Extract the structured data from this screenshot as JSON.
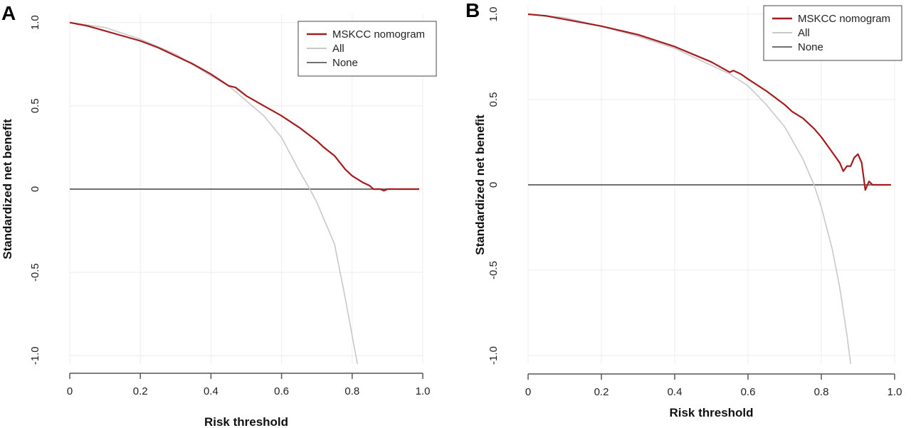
{
  "chart_data": [
    {
      "panel_label": "A",
      "type": "line",
      "xlabel": "Risk threshold",
      "ylabel": "Standardized net benefit",
      "xlim": [
        0,
        1.0
      ],
      "ylim": [
        -1.05,
        1.05
      ],
      "x_ticks": [
        0,
        0.2,
        0.4,
        0.6,
        0.8,
        1.0
      ],
      "x_tick_labels": [
        "0",
        "0.2",
        "0.4",
        "0.6",
        "0.8",
        "1.0"
      ],
      "y_ticks": [
        -1.0,
        -0.5,
        0,
        0.5,
        1.0
      ],
      "y_tick_labels": [
        "-1.0",
        "-0.5",
        "0",
        "0.5",
        "1.0"
      ],
      "grid": true,
      "legend_position": "top-right",
      "legend": [
        "MSKCC nomogram",
        "All",
        "None"
      ],
      "series": [
        {
          "name": "MSKCC nomogram",
          "color": "#a51c1c",
          "x": [
            0,
            0.05,
            0.1,
            0.15,
            0.2,
            0.25,
            0.3,
            0.35,
            0.4,
            0.45,
            0.47,
            0.5,
            0.55,
            0.6,
            0.65,
            0.7,
            0.72,
            0.75,
            0.78,
            0.8,
            0.83,
            0.85,
            0.86,
            0.88,
            0.89,
            0.9,
            0.95,
            0.99
          ],
          "y": [
            1.0,
            0.98,
            0.95,
            0.92,
            0.89,
            0.85,
            0.8,
            0.75,
            0.69,
            0.62,
            0.61,
            0.56,
            0.5,
            0.44,
            0.37,
            0.29,
            0.25,
            0.2,
            0.12,
            0.08,
            0.04,
            0.02,
            0.0,
            0.0,
            -0.01,
            0.0,
            0.0,
            0.0
          ]
        },
        {
          "name": "All",
          "color": "#c8c8c8",
          "x": [
            0,
            0.1,
            0.2,
            0.3,
            0.4,
            0.45,
            0.5,
            0.55,
            0.6,
            0.65,
            0.68,
            0.7,
            0.75,
            0.78,
            0.8,
            0.815
          ],
          "y": [
            1.0,
            0.97,
            0.9,
            0.81,
            0.68,
            0.62,
            0.53,
            0.44,
            0.31,
            0.11,
            0.0,
            -0.08,
            -0.33,
            -0.65,
            -0.88,
            -1.05
          ]
        },
        {
          "name": "None",
          "color": "#707070",
          "x": [
            0,
            0.99
          ],
          "y": [
            0,
            0
          ]
        }
      ]
    },
    {
      "panel_label": "B",
      "type": "line",
      "xlabel": "Risk threshold",
      "ylabel": "Standardized net benefit",
      "xlim": [
        0,
        1.0
      ],
      "ylim": [
        -1.05,
        1.05
      ],
      "x_ticks": [
        0,
        0.2,
        0.4,
        0.6,
        0.8,
        1.0
      ],
      "x_tick_labels": [
        "0",
        "0.2",
        "0.4",
        "0.6",
        "0.8",
        "1.0"
      ],
      "y_ticks": [
        -1.0,
        -0.5,
        0,
        0.5,
        1.0
      ],
      "y_tick_labels": [
        "-1.0",
        "-0.5",
        "0",
        "0.5",
        "1.0"
      ],
      "grid": true,
      "legend_position": "top-right",
      "legend": [
        "MSKCC nomogram",
        "All",
        "None"
      ],
      "series": [
        {
          "name": "MSKCC nomogram",
          "color": "#a51c1c",
          "x": [
            0,
            0.05,
            0.1,
            0.2,
            0.3,
            0.4,
            0.5,
            0.55,
            0.56,
            0.58,
            0.6,
            0.65,
            0.7,
            0.72,
            0.75,
            0.78,
            0.8,
            0.83,
            0.85,
            0.86,
            0.87,
            0.88,
            0.89,
            0.9,
            0.91,
            0.92,
            0.93,
            0.94,
            0.99
          ],
          "y": [
            1.0,
            0.99,
            0.97,
            0.93,
            0.88,
            0.81,
            0.72,
            0.66,
            0.67,
            0.65,
            0.62,
            0.55,
            0.47,
            0.43,
            0.39,
            0.33,
            0.28,
            0.19,
            0.13,
            0.08,
            0.11,
            0.11,
            0.16,
            0.18,
            0.13,
            -0.03,
            0.02,
            0.0,
            0.0
          ]
        },
        {
          "name": "All",
          "color": "#c8c8c8",
          "x": [
            0,
            0.1,
            0.2,
            0.3,
            0.4,
            0.5,
            0.55,
            0.6,
            0.65,
            0.7,
            0.75,
            0.78,
            0.8,
            0.83,
            0.85,
            0.87,
            0.88
          ],
          "y": [
            1.0,
            0.98,
            0.93,
            0.87,
            0.8,
            0.7,
            0.65,
            0.58,
            0.47,
            0.34,
            0.15,
            0.0,
            -0.13,
            -0.38,
            -0.6,
            -0.88,
            -1.05
          ]
        },
        {
          "name": "None",
          "color": "#707070",
          "x": [
            0,
            0.99
          ],
          "y": [
            0,
            0
          ]
        }
      ]
    }
  ]
}
